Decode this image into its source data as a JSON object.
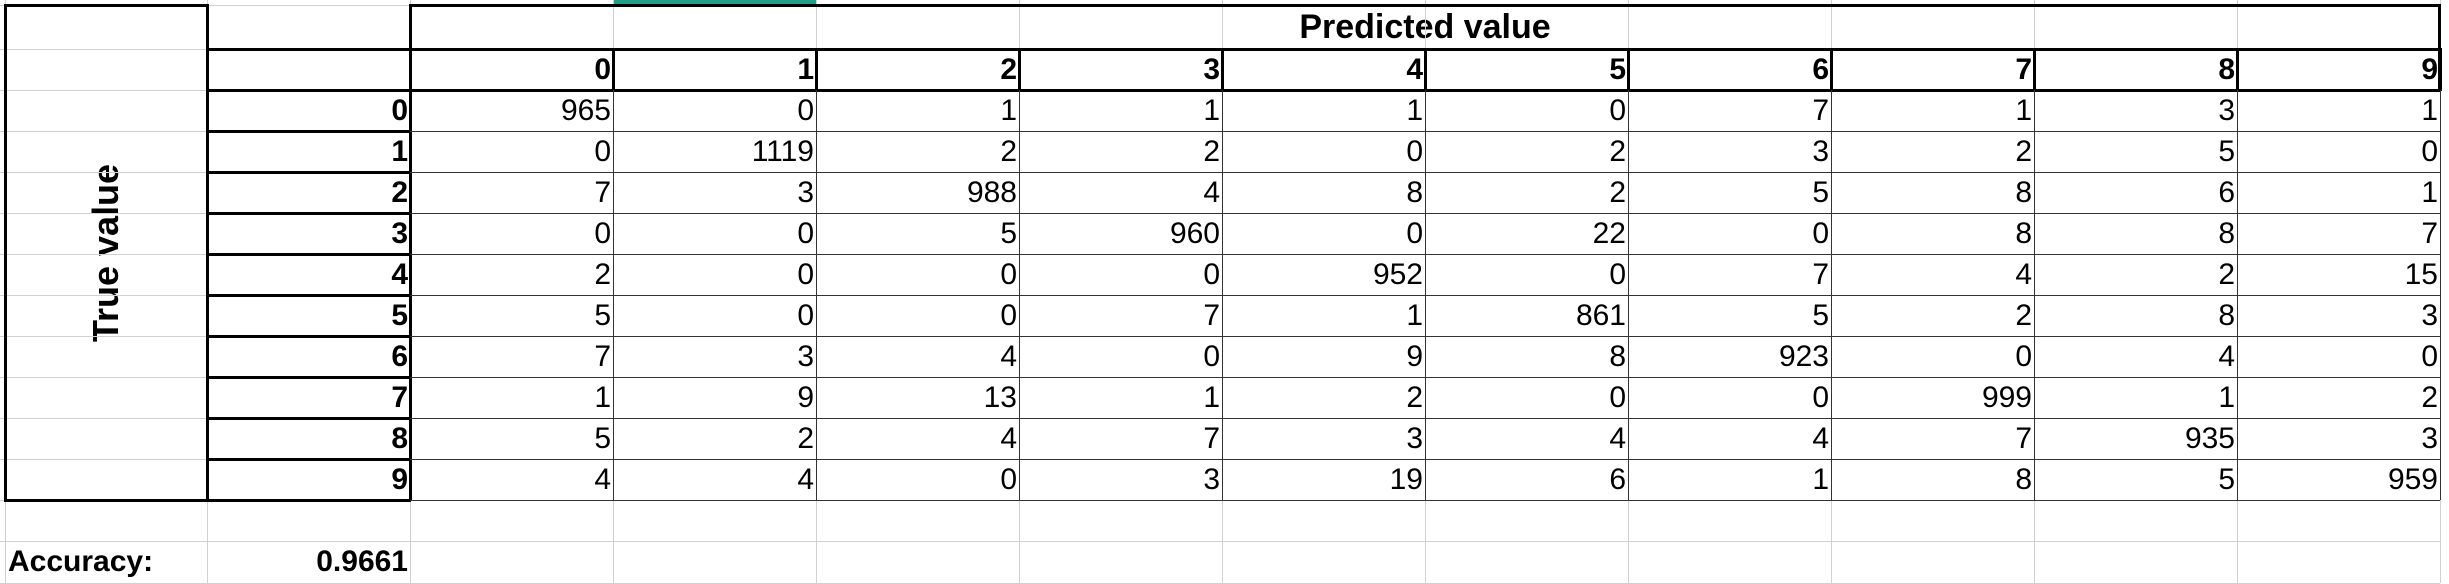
{
  "matrix": {
    "title": "Predicted value",
    "row_axis_label": "True value",
    "col_headers": [
      "0",
      "1",
      "2",
      "3",
      "4",
      "5",
      "6",
      "7",
      "8",
      "9"
    ],
    "row_headers": [
      "0",
      "1",
      "2",
      "3",
      "4",
      "5",
      "6",
      "7",
      "8",
      "9"
    ],
    "rows": [
      [
        "965",
        "0",
        "1",
        "1",
        "1",
        "0",
        "7",
        "1",
        "3",
        "1"
      ],
      [
        "0",
        "1119",
        "2",
        "2",
        "0",
        "2",
        "3",
        "2",
        "5",
        "0"
      ],
      [
        "7",
        "3",
        "988",
        "4",
        "8",
        "2",
        "5",
        "8",
        "6",
        "1"
      ],
      [
        "0",
        "0",
        "5",
        "960",
        "0",
        "22",
        "0",
        "8",
        "8",
        "7"
      ],
      [
        "2",
        "0",
        "0",
        "0",
        "952",
        "0",
        "7",
        "4",
        "2",
        "15"
      ],
      [
        "5",
        "0",
        "0",
        "7",
        "1",
        "861",
        "5",
        "2",
        "8",
        "3"
      ],
      [
        "7",
        "3",
        "4",
        "0",
        "9",
        "8",
        "923",
        "0",
        "4",
        "0"
      ],
      [
        "1",
        "9",
        "13",
        "1",
        "2",
        "0",
        "0",
        "999",
        "1",
        "2"
      ],
      [
        "5",
        "2",
        "4",
        "7",
        "3",
        "4",
        "4",
        "7",
        "935",
        "3"
      ],
      [
        "4",
        "4",
        "0",
        "3",
        "19",
        "6",
        "1",
        "8",
        "5",
        "959"
      ]
    ]
  },
  "accuracy": {
    "label": "Accuracy:",
    "value": "0.9661"
  },
  "colors": {
    "selection": "#1f9f88",
    "gridline": "#d0d0d0",
    "border": "#000000"
  }
}
